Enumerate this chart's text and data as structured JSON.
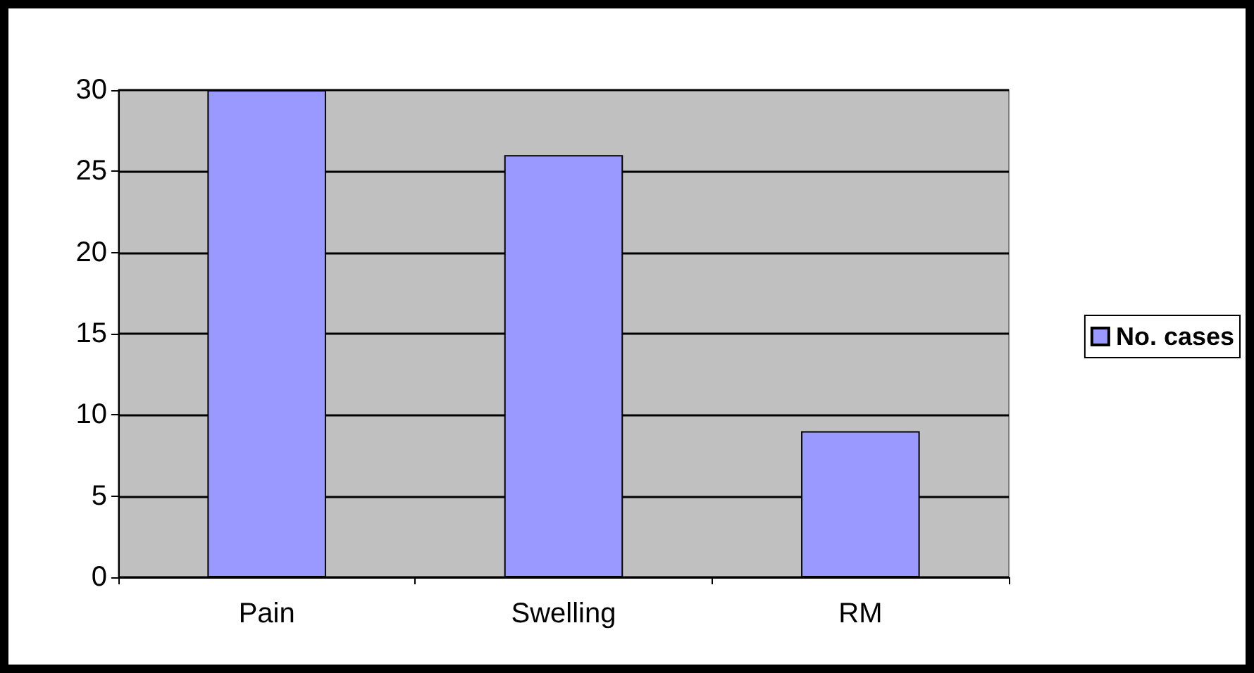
{
  "chart_data": {
    "type": "bar",
    "categories": [
      "Pain",
      "Swelling",
      "RM"
    ],
    "series": [
      {
        "name": "No. cases",
        "color": "#9999ff",
        "values": [
          30,
          26,
          9
        ]
      }
    ],
    "ylim": [
      0,
      30
    ],
    "yticks": [
      0,
      5,
      10,
      15,
      20,
      25,
      30
    ],
    "grid": "y",
    "legend": "right"
  }
}
